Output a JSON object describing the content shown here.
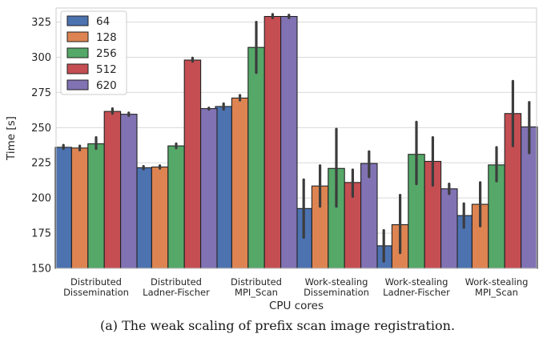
{
  "caption": "(a) The weak scaling of prefix scan image registration.",
  "chart_data": {
    "type": "bar",
    "xlabel": "CPU cores",
    "ylabel": "Time [s]",
    "ylim": [
      150,
      335
    ],
    "yticks": [
      150,
      175,
      200,
      225,
      250,
      275,
      300,
      325
    ],
    "grid": true,
    "legend_position": "top-left",
    "categories": [
      [
        "Distributed",
        "Dissemination"
      ],
      [
        "Distributed",
        "Ladner-Fischer"
      ],
      [
        "Distributed",
        "MPI_Scan"
      ],
      [
        "Work-stealing",
        "Dissemination"
      ],
      [
        "Work-stealing",
        "Ladner-Fischer"
      ],
      [
        "Work-stealing",
        "MPI_Scan"
      ]
    ],
    "series": [
      {
        "name": "64",
        "color": "#4c72b0",
        "values": [
          236,
          221.5,
          265,
          192.5,
          166,
          187.5
        ],
        "err_low": [
          235,
          220.5,
          263,
          172,
          155,
          179
        ],
        "err_high": [
          237.5,
          222.5,
          267,
          213,
          177,
          196
        ]
      },
      {
        "name": "128",
        "color": "#dd8452",
        "values": [
          235.5,
          222,
          271,
          208.5,
          181,
          195.5
        ],
        "err_low": [
          234,
          221,
          269.5,
          194,
          161,
          180
        ],
        "err_high": [
          237,
          223,
          273,
          223,
          202,
          211
        ]
      },
      {
        "name": "256",
        "color": "#55a868",
        "values": [
          238.5,
          237,
          307,
          221,
          231,
          223.5
        ],
        "err_low": [
          235,
          235.5,
          289,
          194,
          210,
          212
        ],
        "err_high": [
          243,
          238.5,
          325,
          249,
          254,
          236
        ]
      },
      {
        "name": "512",
        "color": "#c44e52",
        "values": [
          261.5,
          298,
          329,
          211,
          226,
          260
        ],
        "err_low": [
          260,
          297,
          328,
          201,
          209,
          237
        ],
        "err_high": [
          263.5,
          299.5,
          330.5,
          220,
          243,
          283
        ]
      },
      {
        "name": "620",
        "color": "#8172b3",
        "values": [
          259.5,
          263.5,
          329,
          224.5,
          206.5,
          250.5
        ],
        "err_low": [
          258.5,
          263,
          328,
          215,
          203,
          232
        ],
        "err_high": [
          260.5,
          264,
          330,
          233,
          210,
          268
        ]
      }
    ]
  }
}
